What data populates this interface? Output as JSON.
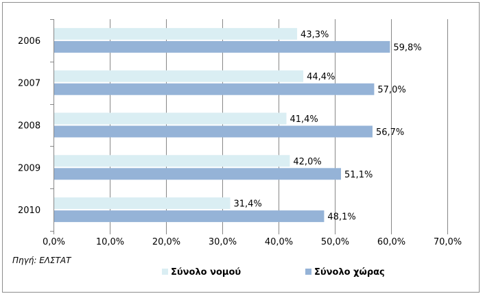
{
  "chart_data": {
    "type": "bar",
    "orientation": "horizontal",
    "categories": [
      "2006",
      "2007",
      "2008",
      "2009",
      "2010"
    ],
    "series": [
      {
        "name": "Σύνολο νομού",
        "color": "#daeef3",
        "values": [
          43.3,
          44.4,
          41.4,
          42.0,
          31.4
        ],
        "labels": [
          "43,3%",
          "44,4%",
          "41,4%",
          "42,0%",
          "31,4%"
        ]
      },
      {
        "name": "Σύνολο χώρας",
        "color": "#95b3d7",
        "values": [
          59.8,
          57.0,
          56.7,
          51.1,
          48.1
        ],
        "labels": [
          "59,8%",
          "57,0%",
          "56,7%",
          "51,1%",
          "48,1%"
        ]
      }
    ],
    "x_ticks": [
      "0,0%",
      "10,0%",
      "20,0%",
      "30,0%",
      "40,0%",
      "50,0%",
      "60,0%",
      "70,0%"
    ],
    "xlim": [
      0,
      70
    ],
    "grid": true,
    "legend_position": "bottom",
    "source_note": "Πηγή: ΕΛΣΤΑΤ"
  }
}
